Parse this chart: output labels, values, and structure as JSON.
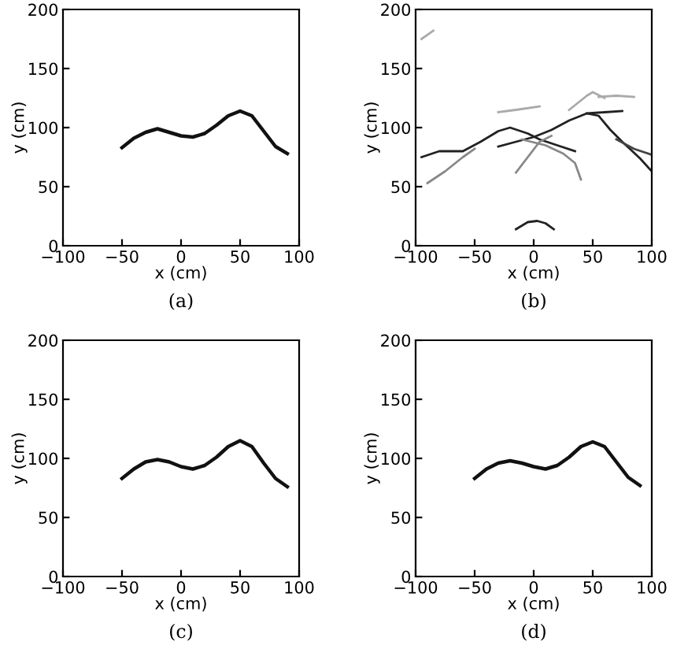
{
  "chart_data": [
    {
      "type": "line",
      "xlabel": "x (cm)",
      "ylabel": "y (cm)",
      "annotations": [
        "(a)"
      ],
      "xlim": [
        -100,
        100
      ],
      "ylim": [
        0,
        200
      ],
      "xticks": [
        -100,
        -50,
        0,
        50,
        100
      ],
      "yticks": [
        0,
        50,
        100,
        150,
        200
      ],
      "grid": false,
      "marker": "none",
      "line_style": "solid",
      "series": [
        {
          "color": "#111111",
          "x": [
            -50,
            -40,
            -30,
            -20,
            -10,
            0,
            10,
            20,
            30,
            40,
            50,
            60,
            70,
            80,
            90
          ],
          "values": [
            83,
            91,
            96,
            99,
            96,
            93,
            92,
            95,
            102,
            110,
            114,
            110,
            97,
            84,
            78
          ]
        }
      ]
    },
    {
      "type": "line",
      "xlabel": "x (cm)",
      "ylabel": "y (cm)",
      "annotations": [
        "(b)"
      ],
      "xlim": [
        -100,
        100
      ],
      "ylim": [
        0,
        200
      ],
      "xticks": [
        -100,
        -50,
        0,
        50,
        100
      ],
      "yticks": [
        0,
        50,
        100,
        150,
        200
      ],
      "grid": false,
      "marker": "none",
      "line_style": "solid",
      "series": [
        {
          "color": "#222222",
          "x": [
            -95,
            -80,
            -60,
            -45,
            -30,
            -20,
            -5,
            5,
            20,
            35
          ],
          "values": [
            75,
            80,
            80,
            88,
            97,
            100,
            95,
            90,
            85,
            80
          ]
        },
        {
          "color": "#888888",
          "x": [
            -90,
            -75,
            -60,
            -50
          ],
          "values": [
            53,
            63,
            75,
            82
          ]
        },
        {
          "color": "#222222",
          "x": [
            -30,
            -15,
            0,
            15,
            30,
            45,
            60,
            75
          ],
          "values": [
            84,
            88,
            92,
            98,
            106,
            112,
            113,
            114
          ]
        },
        {
          "color": "#888888",
          "x": [
            -15,
            -5,
            5,
            15
          ],
          "values": [
            62,
            75,
            88,
            93
          ]
        },
        {
          "color": "#888888",
          "x": [
            -10,
            10,
            25,
            35,
            40
          ],
          "values": [
            90,
            85,
            78,
            70,
            56
          ]
        },
        {
          "color": "#222222",
          "x": [
            45,
            55,
            65,
            75,
            90,
            100
          ],
          "values": [
            112,
            110,
            98,
            88,
            74,
            63
          ]
        },
        {
          "color": "#aaaaaa",
          "x": [
            -30,
            -15,
            5
          ],
          "values": [
            113,
            115,
            118
          ]
        },
        {
          "color": "#aaaaaa",
          "x": [
            30,
            45,
            50,
            60
          ],
          "values": [
            115,
            127,
            130,
            125
          ]
        },
        {
          "color": "#aaaaaa",
          "x": [
            55,
            70,
            85
          ],
          "values": [
            126,
            127,
            126
          ]
        },
        {
          "color": "#444444",
          "x": [
            70,
            85,
            100
          ],
          "values": [
            90,
            82,
            77
          ]
        },
        {
          "color": "#aaaaaa",
          "x": [
            -95,
            -85
          ],
          "values": [
            175,
            182
          ]
        },
        {
          "color": "#222222",
          "x": [
            -15,
            -5,
            3,
            10,
            17
          ],
          "values": [
            14,
            20,
            21,
            19,
            14
          ]
        }
      ]
    },
    {
      "type": "line",
      "xlabel": "x (cm)",
      "ylabel": "y (cm)",
      "annotations": [
        "(c)"
      ],
      "xlim": [
        -100,
        100
      ],
      "ylim": [
        0,
        200
      ],
      "xticks": [
        -100,
        -50,
        0,
        50,
        100
      ],
      "yticks": [
        0,
        50,
        100,
        150,
        200
      ],
      "grid": false,
      "marker": "none",
      "line_style": "solid",
      "series": [
        {
          "color": "#111111",
          "x": [
            -50,
            -40,
            -30,
            -20,
            -10,
            0,
            10,
            20,
            30,
            40,
            50,
            60,
            70,
            80,
            90
          ],
          "values": [
            83,
            91,
            97,
            99,
            97,
            93,
            91,
            94,
            101,
            110,
            115,
            110,
            96,
            83,
            76
          ]
        }
      ]
    },
    {
      "type": "line",
      "xlabel": "x (cm)",
      "ylabel": "y (cm)",
      "annotations": [
        "(d)"
      ],
      "xlim": [
        -100,
        100
      ],
      "ylim": [
        0,
        200
      ],
      "xticks": [
        -100,
        -50,
        0,
        50,
        100
      ],
      "yticks": [
        0,
        50,
        100,
        150,
        200
      ],
      "grid": false,
      "marker": "none",
      "line_style": "solid",
      "series": [
        {
          "color": "#111111",
          "x": [
            -50,
            -40,
            -30,
            -20,
            -10,
            0,
            10,
            20,
            30,
            40,
            50,
            60,
            70,
            80,
            90
          ],
          "values": [
            83,
            91,
            96,
            98,
            96,
            93,
            91,
            94,
            101,
            110,
            114,
            110,
            97,
            84,
            77
          ]
        }
      ]
    }
  ]
}
